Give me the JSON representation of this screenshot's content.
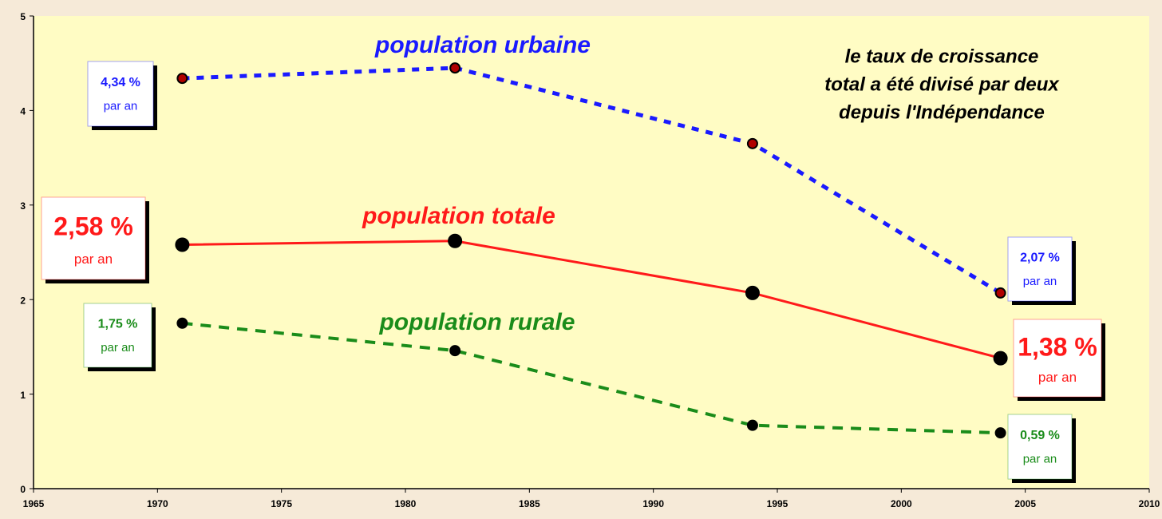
{
  "chart_data": {
    "type": "line",
    "x": [
      1971,
      1982,
      1994,
      2004
    ],
    "xlim": [
      1965,
      2010
    ],
    "xticks": [
      1965,
      1970,
      1975,
      1980,
      1985,
      1990,
      1995,
      2000,
      2005,
      2010
    ],
    "ylim": [
      0,
      5
    ],
    "yticks": [
      0,
      1,
      2,
      3,
      4,
      5
    ],
    "value_suffix": "par an",
    "annotation": [
      "le taux de croissance",
      "total a été divisé par deux",
      "depuis l'Indépendance"
    ],
    "series": [
      {
        "name": "population urbaine",
        "color": "#1a1aff",
        "marker_color": "#b00000",
        "line_style": "dotted",
        "values": [
          4.34,
          4.45,
          3.65,
          2.07
        ],
        "value_labels": [
          "4,34 %",
          null,
          null,
          "2,07 %"
        ]
      },
      {
        "name": "population totale",
        "color": "#ff1a1a",
        "marker_color": "#000000",
        "line_style": "solid",
        "values": [
          2.58,
          2.62,
          2.07,
          1.38
        ],
        "value_labels": [
          "2,58 %",
          null,
          null,
          "1,38 %"
        ]
      },
      {
        "name": "population rurale",
        "color": "#1a8c1a",
        "marker_color": "#000000",
        "line_style": "dashed",
        "values": [
          1.75,
          1.46,
          0.67,
          0.59
        ],
        "value_labels": [
          "1,75 %",
          null,
          null,
          "0,59 %"
        ]
      }
    ]
  }
}
